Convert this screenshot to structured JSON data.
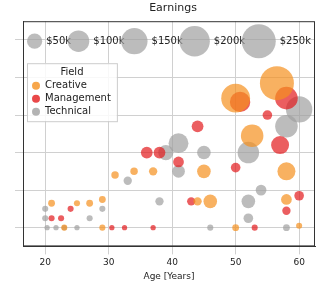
{
  "chart_data": {
    "type": "bubble",
    "title": "Earnings",
    "x_label": "Age [Years]",
    "xlim": [
      16.5,
      62.5
    ],
    "xticks": [
      20,
      30,
      40,
      50,
      60
    ],
    "ylim": [
      -10,
      110
    ],
    "yticks": [
      0,
      20,
      40,
      60,
      80,
      100
    ],
    "tick_labels": "x",
    "grid": true,
    "legend": "upper left",
    "legend_title": "Field",
    "size_legend": [
      {
        "value": 50,
        "label": "$50k"
      },
      {
        "value": 100,
        "label": "$100k"
      },
      {
        "value": 150,
        "label": "$150k"
      },
      {
        "value": 200,
        "label": "$200k"
      },
      {
        "value": 250,
        "label": "$250k"
      }
    ],
    "series": [
      {
        "name": "Creative",
        "color": "#f5901e",
        "values": [
          {
            "x": 56.5,
            "y": 77,
            "size": 250
          },
          {
            "x": 50,
            "y": 69,
            "size": 180
          },
          {
            "x": 52.6,
            "y": 49,
            "size": 110
          },
          {
            "x": 58,
            "y": 30,
            "size": 70
          },
          {
            "x": 45,
            "y": 30,
            "size": 40
          },
          {
            "x": 37,
            "y": 30,
            "size": 15
          },
          {
            "x": 31,
            "y": 28,
            "size": 12
          },
          {
            "x": 34,
            "y": 30,
            "size": 12
          },
          {
            "x": 46,
            "y": 14,
            "size": 40
          },
          {
            "x": 44,
            "y": 14,
            "size": 15
          },
          {
            "x": 58,
            "y": 15,
            "size": 25
          },
          {
            "x": 50,
            "y": 0,
            "size": 10
          },
          {
            "x": 21,
            "y": 13,
            "size": 10
          },
          {
            "x": 23,
            "y": 0,
            "size": 8
          },
          {
            "x": 27,
            "y": 13,
            "size": 10
          },
          {
            "x": 25,
            "y": 13,
            "size": 8
          },
          {
            "x": 29,
            "y": 15,
            "size": 10
          },
          {
            "x": 29,
            "y": 0,
            "size": 8
          },
          {
            "x": 60,
            "y": 1,
            "size": 8
          }
        ]
      },
      {
        "name": "Management",
        "color": "#e31a1c",
        "values": [
          {
            "x": 58,
            "y": 69,
            "size": 110
          },
          {
            "x": 50.7,
            "y": 67,
            "size": 90
          },
          {
            "x": 57,
            "y": 44,
            "size": 70
          },
          {
            "x": 44,
            "y": 54,
            "size": 30
          },
          {
            "x": 36,
            "y": 40,
            "size": 30
          },
          {
            "x": 38,
            "y": 40,
            "size": 30
          },
          {
            "x": 41,
            "y": 35,
            "size": 25
          },
          {
            "x": 43,
            "y": 14,
            "size": 15
          },
          {
            "x": 50,
            "y": 32,
            "size": 20
          },
          {
            "x": 60,
            "y": 17,
            "size": 20
          },
          {
            "x": 58,
            "y": 9,
            "size": 15
          },
          {
            "x": 53,
            "y": 0,
            "size": 8
          },
          {
            "x": 21,
            "y": 5,
            "size": 8
          },
          {
            "x": 22.5,
            "y": 5,
            "size": 8
          },
          {
            "x": 24,
            "y": 10,
            "size": 8
          },
          {
            "x": 30.5,
            "y": 0,
            "size": 6
          },
          {
            "x": 32.5,
            "y": 0,
            "size": 6
          },
          {
            "x": 37,
            "y": 0,
            "size": 6
          },
          {
            "x": 55,
            "y": 60,
            "size": 20
          }
        ]
      },
      {
        "name": "Technical",
        "color": "#a0a0a0",
        "values": [
          {
            "x": 60,
            "y": 63,
            "size": 150
          },
          {
            "x": 58,
            "y": 54,
            "size": 110
          },
          {
            "x": 52,
            "y": 40,
            "size": 100
          },
          {
            "x": 41,
            "y": 45,
            "size": 85
          },
          {
            "x": 39,
            "y": 40,
            "size": 50
          },
          {
            "x": 41,
            "y": 30,
            "size": 35
          },
          {
            "x": 33,
            "y": 25,
            "size": 15
          },
          {
            "x": 52,
            "y": 14,
            "size": 40
          },
          {
            "x": 52,
            "y": 5,
            "size": 20
          },
          {
            "x": 38,
            "y": 14,
            "size": 15
          },
          {
            "x": 54,
            "y": 20,
            "size": 25
          },
          {
            "x": 58,
            "y": 0,
            "size": 10
          },
          {
            "x": 46,
            "y": 0,
            "size": 8
          },
          {
            "x": 20,
            "y": 10,
            "size": 8
          },
          {
            "x": 20,
            "y": 5,
            "size": 8
          },
          {
            "x": 20.3,
            "y": 0,
            "size": 6
          },
          {
            "x": 21.7,
            "y": 0,
            "size": 6
          },
          {
            "x": 23,
            "y": 0,
            "size": 6
          },
          {
            "x": 25,
            "y": 0,
            "size": 6
          },
          {
            "x": 27,
            "y": 5,
            "size": 8
          },
          {
            "x": 29,
            "y": 10,
            "size": 8
          },
          {
            "x": 45,
            "y": 40,
            "size": 40
          }
        ]
      }
    ]
  }
}
